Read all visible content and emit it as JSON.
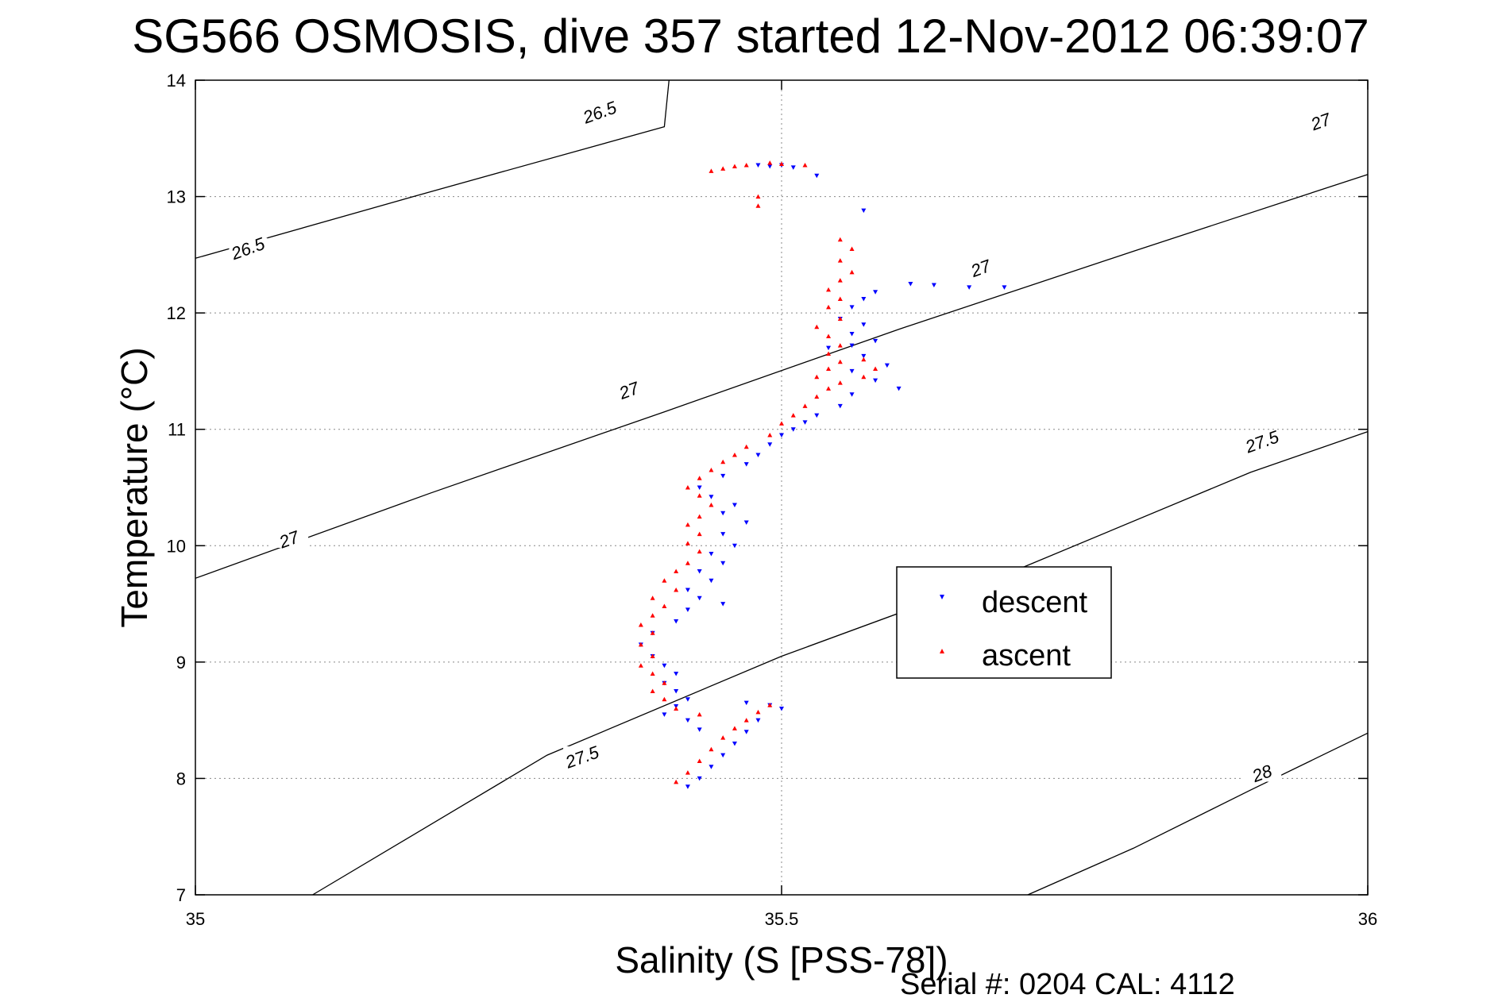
{
  "chart_data": {
    "type": "scatter",
    "title": "SG566 OSMOSIS, dive 357 started 12-Nov-2012 06:39:07",
    "xlabel": "Salinity (S [PSS-78])",
    "ylabel": "Temperature (°C)",
    "footer": "Serial #: 0204  CAL: 4112",
    "xlim": [
      35,
      36
    ],
    "ylim": [
      7,
      14
    ],
    "x_ticks": [
      "35",
      "35.5",
      "36"
    ],
    "y_ticks": [
      "7",
      "8",
      "9",
      "10",
      "11",
      "12",
      "13",
      "14"
    ],
    "x_tick_values": [
      35,
      35.5,
      36
    ],
    "y_tick_values": [
      7,
      8,
      9,
      10,
      11,
      12,
      13,
      14
    ],
    "grid": true,
    "legend_position": "center-right",
    "legend": [
      "descent",
      "ascent"
    ],
    "density_contours": [
      {
        "label": "26.5",
        "points": [
          [
            35,
            12.47
          ],
          [
            35.2,
            13.04
          ],
          [
            35.4,
            13.6
          ],
          [
            35.404,
            14
          ]
        ]
      },
      {
        "label": "27",
        "points": [
          [
            35,
            9.72
          ],
          [
            35.2,
            10.45
          ],
          [
            35.4,
            11.15
          ],
          [
            35.6,
            11.86
          ],
          [
            35.8,
            12.53
          ],
          [
            36,
            13.19
          ]
        ]
      },
      {
        "label": "27.5",
        "points": [
          [
            35.1,
            7
          ],
          [
            35.3,
            8.2
          ],
          [
            35.5,
            9.05
          ],
          [
            35.7,
            9.79
          ],
          [
            35.9,
            10.63
          ],
          [
            36,
            10.98
          ]
        ]
      },
      {
        "label": "28",
        "points": [
          [
            35.71,
            7
          ],
          [
            35.8,
            7.4
          ],
          [
            35.9,
            7.9
          ],
          [
            36,
            8.39
          ]
        ]
      }
    ],
    "contour_label_positions": [
      {
        "label": "26.5",
        "x": 35.345,
        "y": 13.72
      },
      {
        "label": "26.5",
        "x": 35.045,
        "y": 12.55
      },
      {
        "label": "27",
        "x": 35.37,
        "y": 11.33
      },
      {
        "label": "27",
        "x": 35.08,
        "y": 10.05
      },
      {
        "label": "27",
        "x": 35.67,
        "y": 12.38
      },
      {
        "label": "27",
        "x": 35.96,
        "y": 13.64
      },
      {
        "label": "27.5",
        "x": 35.91,
        "y": 10.89
      },
      {
        "label": "27.5",
        "x": 35.33,
        "y": 8.18
      },
      {
        "label": "28",
        "x": 35.91,
        "y": 8.04
      }
    ],
    "series": [
      {
        "name": "descent",
        "color": "#0000ff",
        "marker": "triangle-down",
        "points": [
          [
            35.48,
            13.27
          ],
          [
            35.49,
            13.26
          ],
          [
            35.5,
            13.27
          ],
          [
            35.51,
            13.25
          ],
          [
            35.53,
            13.18
          ],
          [
            35.57,
            12.88
          ],
          [
            35.61,
            12.25
          ],
          [
            35.63,
            12.24
          ],
          [
            35.66,
            12.22
          ],
          [
            35.69,
            12.22
          ],
          [
            35.58,
            12.18
          ],
          [
            35.57,
            12.12
          ],
          [
            35.56,
            12.05
          ],
          [
            35.55,
            11.95
          ],
          [
            35.57,
            11.9
          ],
          [
            35.56,
            11.82
          ],
          [
            35.58,
            11.76
          ],
          [
            35.56,
            11.72
          ],
          [
            35.54,
            11.7
          ],
          [
            35.57,
            11.63
          ],
          [
            35.59,
            11.55
          ],
          [
            35.56,
            11.5
          ],
          [
            35.58,
            11.42
          ],
          [
            35.6,
            11.35
          ],
          [
            35.56,
            11.3
          ],
          [
            35.55,
            11.2
          ],
          [
            35.53,
            11.12
          ],
          [
            35.52,
            11.06
          ],
          [
            35.51,
            11.0
          ],
          [
            35.5,
            10.95
          ],
          [
            35.49,
            10.87
          ],
          [
            35.48,
            10.78
          ],
          [
            35.47,
            10.7
          ],
          [
            35.45,
            10.6
          ],
          [
            35.43,
            10.5
          ],
          [
            35.44,
            10.42
          ],
          [
            35.46,
            10.35
          ],
          [
            35.45,
            10.28
          ],
          [
            35.47,
            10.2
          ],
          [
            35.45,
            10.1
          ],
          [
            35.46,
            10.0
          ],
          [
            35.44,
            9.93
          ],
          [
            35.45,
            9.85
          ],
          [
            35.43,
            9.78
          ],
          [
            35.44,
            9.7
          ],
          [
            35.42,
            9.62
          ],
          [
            35.43,
            9.55
          ],
          [
            35.45,
            9.5
          ],
          [
            35.42,
            9.45
          ],
          [
            35.41,
            9.35
          ],
          [
            35.39,
            9.25
          ],
          [
            35.38,
            9.15
          ],
          [
            35.39,
            9.05
          ],
          [
            35.4,
            8.97
          ],
          [
            35.41,
            8.9
          ],
          [
            35.4,
            8.82
          ],
          [
            35.41,
            8.75
          ],
          [
            35.42,
            8.68
          ],
          [
            35.41,
            8.62
          ],
          [
            35.4,
            8.55
          ],
          [
            35.42,
            8.5
          ],
          [
            35.43,
            8.42
          ],
          [
            35.47,
            8.65
          ],
          [
            35.49,
            8.63
          ],
          [
            35.5,
            8.6
          ],
          [
            35.48,
            8.5
          ],
          [
            35.47,
            8.4
          ],
          [
            35.46,
            8.3
          ],
          [
            35.45,
            8.2
          ],
          [
            35.44,
            8.1
          ],
          [
            35.43,
            8.0
          ],
          [
            35.42,
            7.93
          ]
        ]
      },
      {
        "name": "ascent",
        "color": "#ff0000",
        "marker": "triangle-up",
        "points": [
          [
            35.44,
            13.22
          ],
          [
            35.45,
            13.24
          ],
          [
            35.46,
            13.26
          ],
          [
            35.47,
            13.27
          ],
          [
            35.49,
            13.29
          ],
          [
            35.5,
            13.28
          ],
          [
            35.52,
            13.27
          ],
          [
            35.48,
            13.0
          ],
          [
            35.48,
            12.92
          ],
          [
            35.55,
            12.63
          ],
          [
            35.56,
            12.55
          ],
          [
            35.55,
            12.45
          ],
          [
            35.56,
            12.35
          ],
          [
            35.55,
            12.28
          ],
          [
            35.54,
            12.2
          ],
          [
            35.55,
            12.12
          ],
          [
            35.54,
            12.05
          ],
          [
            35.55,
            11.95
          ],
          [
            35.53,
            11.88
          ],
          [
            35.54,
            11.8
          ],
          [
            35.55,
            11.72
          ],
          [
            35.54,
            11.65
          ],
          [
            35.55,
            11.58
          ],
          [
            35.54,
            11.52
          ],
          [
            35.53,
            11.45
          ],
          [
            35.55,
            11.4
          ],
          [
            35.57,
            11.45
          ],
          [
            35.58,
            11.52
          ],
          [
            35.57,
            11.6
          ],
          [
            35.54,
            11.35
          ],
          [
            35.53,
            11.28
          ],
          [
            35.52,
            11.2
          ],
          [
            35.51,
            11.12
          ],
          [
            35.5,
            11.05
          ],
          [
            35.49,
            10.95
          ],
          [
            35.47,
            10.85
          ],
          [
            35.46,
            10.78
          ],
          [
            35.45,
            10.72
          ],
          [
            35.44,
            10.65
          ],
          [
            35.43,
            10.58
          ],
          [
            35.42,
            10.5
          ],
          [
            35.43,
            10.43
          ],
          [
            35.44,
            10.35
          ],
          [
            35.43,
            10.25
          ],
          [
            35.42,
            10.18
          ],
          [
            35.43,
            10.1
          ],
          [
            35.42,
            10.02
          ],
          [
            35.43,
            9.95
          ],
          [
            35.42,
            9.85
          ],
          [
            35.41,
            9.78
          ],
          [
            35.4,
            9.7
          ],
          [
            35.41,
            9.62
          ],
          [
            35.39,
            9.55
          ],
          [
            35.4,
            9.48
          ],
          [
            35.39,
            9.4
          ],
          [
            35.38,
            9.32
          ],
          [
            35.39,
            9.25
          ],
          [
            35.38,
            9.15
          ],
          [
            35.39,
            9.05
          ],
          [
            35.38,
            8.97
          ],
          [
            35.39,
            8.9
          ],
          [
            35.4,
            8.82
          ],
          [
            35.39,
            8.75
          ],
          [
            35.4,
            8.68
          ],
          [
            35.41,
            8.6
          ],
          [
            35.43,
            8.55
          ],
          [
            35.49,
            8.63
          ],
          [
            35.48,
            8.57
          ],
          [
            35.47,
            8.5
          ],
          [
            35.46,
            8.43
          ],
          [
            35.45,
            8.35
          ],
          [
            35.44,
            8.25
          ],
          [
            35.43,
            8.15
          ],
          [
            35.42,
            8.05
          ],
          [
            35.41,
            7.97
          ]
        ]
      }
    ]
  }
}
